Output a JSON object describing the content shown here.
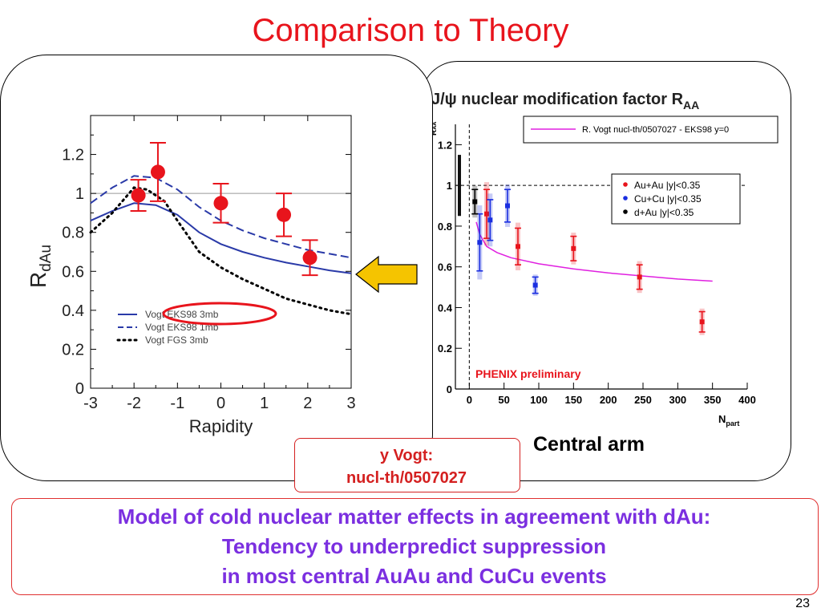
{
  "slide": {
    "title": "Comparison to Theory",
    "central_arm_label": "Central arm",
    "reference_line1": "Vogt:",
    "reference_line2": "nucl-th/0507027",
    "reference_line1_prefix": "y",
    "conclusion_line1": "Model of cold nuclear matter effects in agreement with dAu:",
    "conclusion_line2": "Tendency to underpredict suppression",
    "conclusion_line3": "in most central AuAu and CuCu events",
    "page_number": "23",
    "arrow_color": "#f5c400"
  },
  "chart_data": [
    {
      "id": "left-chart",
      "type": "line+scatter",
      "ylabel_main": "R",
      "ylabel_sub": "dAu",
      "xlabel": "Rapidity",
      "xlim": [
        -3,
        3
      ],
      "ylim": [
        0,
        1.4
      ],
      "xticks": [
        "-3",
        "-2",
        "-1",
        "0",
        "1",
        "2",
        "3"
      ],
      "yticks": [
        "0",
        "0.2",
        "0.4",
        "0.6",
        "0.8",
        "1",
        "1.2"
      ],
      "reference_line_y": 1,
      "curves": [
        {
          "name": "Vogt EKS98 3mb",
          "color": "#2a3aa8",
          "dash": "solid",
          "points": [
            [
              -3,
              0.86
            ],
            [
              -2.5,
              0.91
            ],
            [
              -2.0,
              0.95
            ],
            [
              -1.5,
              0.94
            ],
            [
              -1.0,
              0.89
            ],
            [
              -0.5,
              0.8
            ],
            [
              0,
              0.74
            ],
            [
              0.5,
              0.7
            ],
            [
              1.0,
              0.67
            ],
            [
              1.5,
              0.645
            ],
            [
              2.0,
              0.625
            ],
            [
              2.5,
              0.605
            ],
            [
              3.0,
              0.59
            ]
          ]
        },
        {
          "name": "Vogt EKS98 1mb",
          "color": "#2a3aa8",
          "dash": "dashed",
          "points": [
            [
              -3,
              0.95
            ],
            [
              -2.5,
              1.03
            ],
            [
              -2.0,
              1.09
            ],
            [
              -1.5,
              1.08
            ],
            [
              -1.0,
              1.02
            ],
            [
              -0.5,
              0.93
            ],
            [
              0,
              0.86
            ],
            [
              0.5,
              0.81
            ],
            [
              1.0,
              0.77
            ],
            [
              1.5,
              0.74
            ],
            [
              2.0,
              0.71
            ],
            [
              2.5,
              0.69
            ],
            [
              3.0,
              0.67
            ]
          ]
        },
        {
          "name": "Vogt FGS 3mb",
          "color": "#000000",
          "dash": "dotted",
          "points": [
            [
              -3,
              0.8
            ],
            [
              -2.5,
              0.9
            ],
            [
              -2.0,
              1.03
            ],
            [
              -1.7,
              1.02
            ],
            [
              -1.3,
              0.96
            ],
            [
              -1.0,
              0.86
            ],
            [
              -0.5,
              0.7
            ],
            [
              0,
              0.62
            ],
            [
              0.5,
              0.56
            ],
            [
              1.0,
              0.51
            ],
            [
              1.5,
              0.46
            ],
            [
              2.0,
              0.43
            ],
            [
              2.5,
              0.4
            ],
            [
              3.0,
              0.38
            ]
          ]
        }
      ],
      "points": {
        "color": "#e8141c",
        "x": [
          -1.9,
          -1.45,
          0,
          1.45,
          2.05
        ],
        "y": [
          0.99,
          1.11,
          0.95,
          0.89,
          0.67
        ],
        "err": [
          0.08,
          0.15,
          0.1,
          0.11,
          0.09
        ]
      },
      "legend": [
        "Vogt EKS98 3mb",
        "Vogt EKS98 1mb",
        "Vogt FGS 3mb"
      ],
      "highlight_color": "#e8141c"
    },
    {
      "id": "right-chart",
      "type": "scatter+line",
      "title_main": "J/ψ nuclear modification factor R",
      "title_sub": "AA",
      "ylabel_main": "R",
      "ylabel_sub": "AA",
      "xlabel_main": "N",
      "xlabel_sub": "part",
      "xlim": [
        -20,
        400
      ],
      "ylim": [
        0,
        1.3
      ],
      "xticks": [
        "0",
        "50",
        "100",
        "150",
        "200",
        "250",
        "300",
        "350",
        "400"
      ],
      "yticks": [
        "0",
        "0.2",
        "0.4",
        "0.6",
        "0.8",
        "1",
        "1.2"
      ],
      "reference_line_y": 1,
      "theory": {
        "name": "R. Vogt nucl-th/0507027 - EKS98 y=0",
        "color": "#e020e0",
        "points": [
          [
            10,
            0.82
          ],
          [
            15,
            0.76
          ],
          [
            25,
            0.7
          ],
          [
            40,
            0.67
          ],
          [
            60,
            0.645
          ],
          [
            100,
            0.615
          ],
          [
            150,
            0.59
          ],
          [
            200,
            0.57
          ],
          [
            250,
            0.555
          ],
          [
            300,
            0.54
          ],
          [
            350,
            0.53
          ]
        ]
      },
      "series": [
        {
          "name": "Au+Au |y|<0.35",
          "color": "#e8141c",
          "x": [
            25,
            70,
            150,
            245,
            335
          ],
          "y": [
            0.86,
            0.7,
            0.69,
            0.55,
            0.33
          ],
          "err": [
            0.12,
            0.09,
            0.06,
            0.06,
            0.05
          ]
        },
        {
          "name": "Cu+Cu |y|<0.35",
          "color": "#1a2ee0",
          "x": [
            15,
            30,
            55,
            95
          ],
          "y": [
            0.72,
            0.83,
            0.9,
            0.51
          ],
          "err": [
            0.14,
            0.1,
            0.08,
            0.04
          ]
        },
        {
          "name": "d+Au |y|<0.35",
          "color": "#000000",
          "x": [
            8
          ],
          "y": [
            0.92
          ],
          "err": [
            0.06
          ]
        }
      ],
      "annotation": "PHENIX preliminary",
      "annotation_color": "#e8141c"
    }
  ]
}
